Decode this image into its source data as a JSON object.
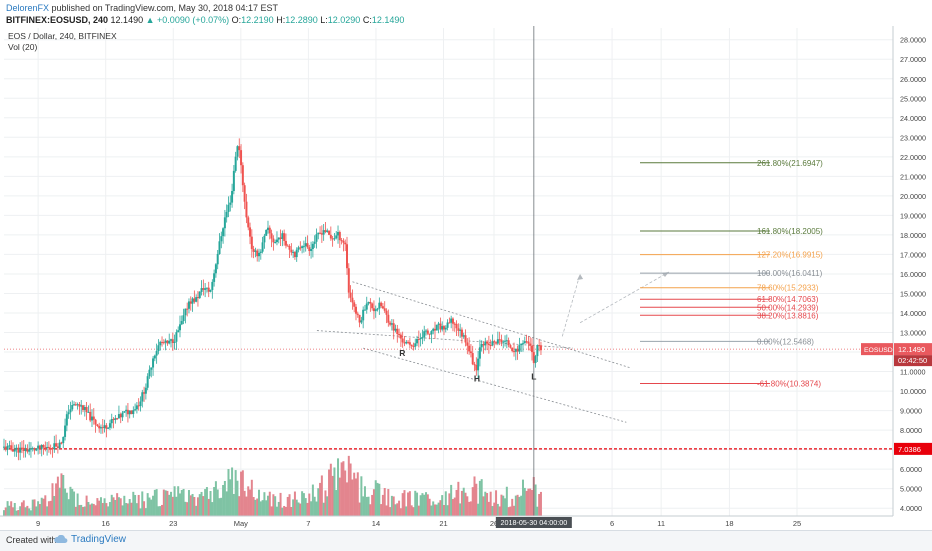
{
  "header": {
    "author": "DelorenFX",
    "published_text": "published on TradingView.com, May 30, 2018 04:17 EST",
    "symbol": "BITFINEX:EOSUSD, 240",
    "last": "12.1490",
    "change": "+0.0090 (+0.07%)",
    "o_label": "O:",
    "o_val": "12.2190",
    "h_label": "H:",
    "h_val": "12.2890",
    "l_label": "L:",
    "l_val": "12.0290",
    "c_label": "C:",
    "c_val": "12.1490"
  },
  "footer": {
    "created": "Created with",
    "brand": "TradingView"
  },
  "colors": {
    "up": "#26a69a",
    "down": "#ef5350",
    "vol_up": "#7fc3a4",
    "vol_down": "#e3858e",
    "grid": "#eef0f2",
    "fib_green": "#5a7a3c",
    "fib_orange": "#f4a24c",
    "fib_red": "#e5484d",
    "fib_gray": "#9aa4ad",
    "support_red": "#e8000b"
  },
  "chart_data": {
    "type": "candlestick",
    "title": "EOS / Dollar, 240, BITFINEX",
    "indicator": "Vol (20)",
    "ylim": [
      3.6,
      28.6
    ],
    "yticks": [
      "4.0000",
      "5.0000",
      "6.0000",
      "7.0000",
      "8.0000",
      "9.0000",
      "10.0000",
      "11.0000",
      "12.0000",
      "13.0000",
      "14.0000",
      "15.0000",
      "16.0000",
      "17.0000",
      "18.0000",
      "19.0000",
      "20.0000",
      "21.0000",
      "22.0000",
      "23.0000",
      "24.0000",
      "25.0000",
      "26.0000",
      "27.0000",
      "28.0000"
    ],
    "xticks": [
      {
        "label": "9",
        "t": 0.048
      },
      {
        "label": "16",
        "t": 0.143
      },
      {
        "label": "23",
        "t": 0.238
      },
      {
        "label": "May",
        "t": 0.333
      },
      {
        "label": "7",
        "t": 0.428
      },
      {
        "label": "14",
        "t": 0.523
      },
      {
        "label": "21",
        "t": 0.618
      },
      {
        "label": "26",
        "t": 0.689
      },
      {
        "label": "6",
        "t": 0.855
      },
      {
        "label": "11",
        "t": 0.924
      },
      {
        "label": "18",
        "t": 1.02
      },
      {
        "label": "25",
        "t": 1.115
      }
    ],
    "cursor_label": "2018-05-30 04:00:00",
    "path": [
      [
        0,
        7.1
      ],
      [
        0.02,
        7.0
      ],
      [
        0.04,
        7.0
      ],
      [
        0.06,
        7.1
      ],
      [
        0.07,
        7.2
      ],
      [
        0.08,
        7.3
      ],
      [
        0.085,
        8.0
      ],
      [
        0.09,
        9.0
      ],
      [
        0.1,
        9.3
      ],
      [
        0.11,
        9.2
      ],
      [
        0.12,
        8.7
      ],
      [
        0.13,
        8.3
      ],
      [
        0.14,
        8.1
      ],
      [
        0.15,
        8.4
      ],
      [
        0.16,
        8.6
      ],
      [
        0.17,
        8.9
      ],
      [
        0.18,
        9.0
      ],
      [
        0.19,
        9.4
      ],
      [
        0.2,
        10.3
      ],
      [
        0.21,
        11.8
      ],
      [
        0.22,
        12.5
      ],
      [
        0.23,
        12.4
      ],
      [
        0.24,
        12.7
      ],
      [
        0.25,
        13.5
      ],
      [
        0.26,
        14.6
      ],
      [
        0.27,
        14.7
      ],
      [
        0.28,
        15.3
      ],
      [
        0.29,
        15.1
      ],
      [
        0.295,
        16.0
      ],
      [
        0.3,
        17.0
      ],
      [
        0.31,
        18.8
      ],
      [
        0.315,
        19.4
      ],
      [
        0.32,
        20.0
      ],
      [
        0.325,
        22.0
      ],
      [
        0.33,
        22.7
      ],
      [
        0.335,
        21.0
      ],
      [
        0.34,
        19.0
      ],
      [
        0.345,
        18.2
      ],
      [
        0.35,
        17.0
      ],
      [
        0.36,
        17.1
      ],
      [
        0.37,
        18.3
      ],
      [
        0.38,
        17.6
      ],
      [
        0.39,
        18.0
      ],
      [
        0.4,
        17.4
      ],
      [
        0.41,
        17.0
      ],
      [
        0.42,
        17.6
      ],
      [
        0.43,
        17.3
      ],
      [
        0.44,
        17.9
      ],
      [
        0.45,
        18.3
      ],
      [
        0.46,
        17.8
      ],
      [
        0.47,
        18.0
      ],
      [
        0.48,
        17.5
      ],
      [
        0.485,
        15.0
      ],
      [
        0.49,
        14.6
      ],
      [
        0.495,
        14.0
      ],
      [
        0.5,
        13.5
      ],
      [
        0.51,
        14.6
      ],
      [
        0.52,
        14.2
      ],
      [
        0.53,
        14.4
      ],
      [
        0.54,
        13.7
      ],
      [
        0.55,
        13.1
      ],
      [
        0.56,
        12.6
      ],
      [
        0.57,
        12.3
      ],
      [
        0.58,
        12.5
      ],
      [
        0.59,
        13.0
      ],
      [
        0.6,
        12.9
      ],
      [
        0.61,
        13.3
      ],
      [
        0.62,
        13.2
      ],
      [
        0.63,
        13.6
      ],
      [
        0.64,
        13.1
      ],
      [
        0.65,
        12.6
      ],
      [
        0.66,
        11.4
      ],
      [
        0.665,
        11.2
      ],
      [
        0.67,
        12.6
      ],
      [
        0.68,
        12.3
      ],
      [
        0.69,
        12.5
      ],
      [
        0.7,
        12.6
      ],
      [
        0.71,
        12.4
      ],
      [
        0.72,
        12.0
      ],
      [
        0.73,
        12.6
      ],
      [
        0.74,
        12.4
      ],
      [
        0.745,
        11.3
      ],
      [
        0.75,
        12.2
      ],
      [
        0.755,
        12.15
      ]
    ],
    "volume_profile": [
      [
        0.0,
        0.6
      ],
      [
        0.05,
        0.7
      ],
      [
        0.085,
        1.8
      ],
      [
        0.1,
        1.0
      ],
      [
        0.15,
        0.8
      ],
      [
        0.2,
        1.0
      ],
      [
        0.26,
        1.2
      ],
      [
        0.3,
        1.5
      ],
      [
        0.33,
        2.3
      ],
      [
        0.36,
        1.0
      ],
      [
        0.42,
        0.9
      ],
      [
        0.485,
        2.6
      ],
      [
        0.5,
        1.6
      ],
      [
        0.55,
        1.0
      ],
      [
        0.6,
        0.9
      ],
      [
        0.66,
        1.5
      ],
      [
        0.7,
        1.0
      ],
      [
        0.745,
        1.5
      ],
      [
        0.755,
        0.9
      ]
    ],
    "fib_levels": [
      {
        "label": "261.80%(21.6947)",
        "value": 21.6947,
        "color": "#5a7a3c"
      },
      {
        "label": "161.80%(18.2005)",
        "value": 18.2005,
        "color": "#5a7a3c"
      },
      {
        "label": "127.20%(16.9915)",
        "value": 16.9915,
        "color": "#f4a24c"
      },
      {
        "label": "100.00%(16.0411)",
        "value": 16.0411,
        "color": "#9aa4ad"
      },
      {
        "label": "78.60%(15.2933)",
        "value": 15.2933,
        "color": "#f4a24c"
      },
      {
        "label": "61.80%(14.7063)",
        "value": 14.7063,
        "color": "#e5484d"
      },
      {
        "label": "50.00%(14.2939)",
        "value": 14.2939,
        "color": "#e5484d"
      },
      {
        "label": "38.20%(13.8816)",
        "value": 13.8816,
        "color": "#e5484d"
      },
      {
        "label": "0.00%(12.5468)",
        "value": 12.5468,
        "color": "#9aa4ad"
      },
      {
        "label": "-61.80%(10.3874)",
        "value": 10.3874,
        "color": "#e5484d"
      }
    ],
    "pattern_labels": [
      {
        "text": "R",
        "t": 0.56,
        "y": 11.8
      },
      {
        "text": "H",
        "t": 0.665,
        "y": 10.5
      },
      {
        "text": "L",
        "t": 0.745,
        "y": 10.6
      }
    ],
    "channel_top": {
      "t1": 0.49,
      "y1": 15.6,
      "t2": 0.88,
      "y2": 11.2
    },
    "channel_mid": {
      "t1": 0.44,
      "y1": 13.1,
      "t2": 0.8,
      "y2": 12.2
    },
    "channel_bot": {
      "t1": 0.505,
      "y1": 12.2,
      "t2": 0.875,
      "y2": 8.4
    },
    "projection": {
      "t1": 0.785,
      "y1": 12.8,
      "t2": 0.81,
      "y2": 16.0
    },
    "projection2": {
      "t1": 0.81,
      "y1": 13.5,
      "t2": 0.935,
      "y2": 16.1
    },
    "price_line": {
      "value": 12.149,
      "label": "EOSUSD",
      "price": "12.1490",
      "countdown": "02:42:50"
    },
    "support_line": {
      "value": 7.0386,
      "label": "7.0386"
    }
  }
}
